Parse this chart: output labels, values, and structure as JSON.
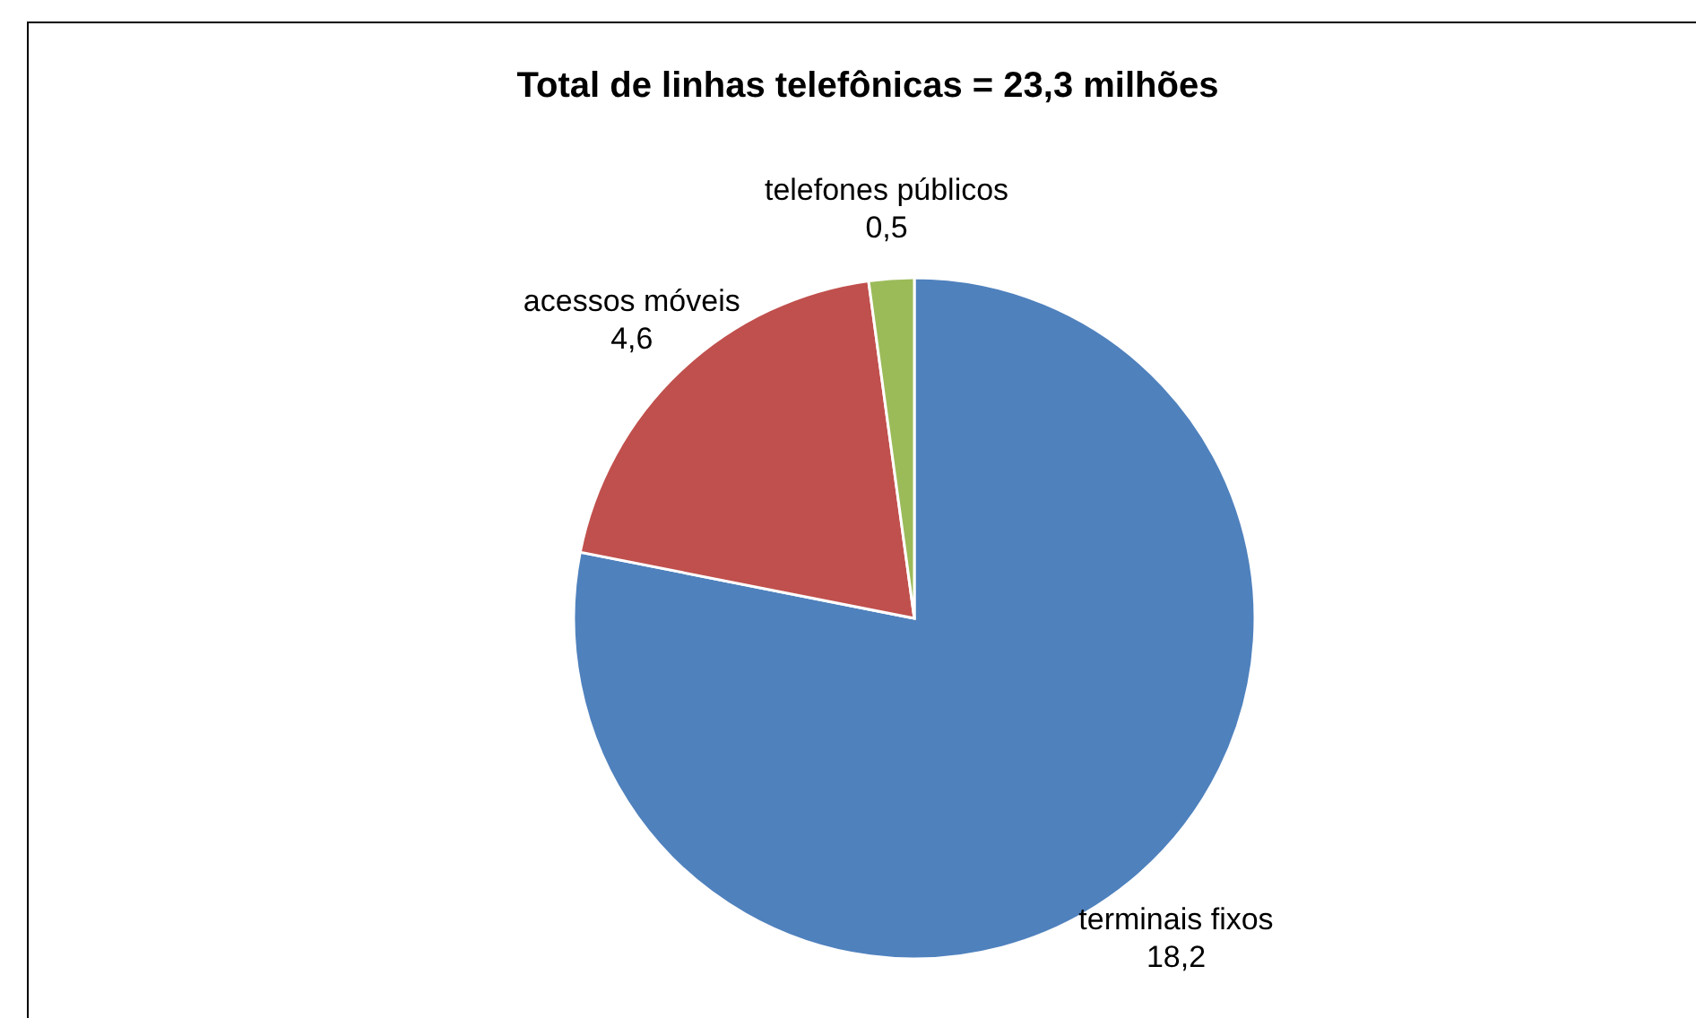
{
  "chart_data": {
    "type": "pie",
    "title": "Total de linhas telefônicas = 23,3 milhões",
    "categories": [
      "terminais fixos",
      "acessos móveis",
      "telefones públicos"
    ],
    "values": [
      18.2,
      4.6,
      0.5
    ],
    "value_labels": [
      "18,2",
      "4,6",
      "0,5"
    ],
    "colors": [
      "#4f81bd",
      "#c0504d",
      "#9bbb59"
    ]
  }
}
